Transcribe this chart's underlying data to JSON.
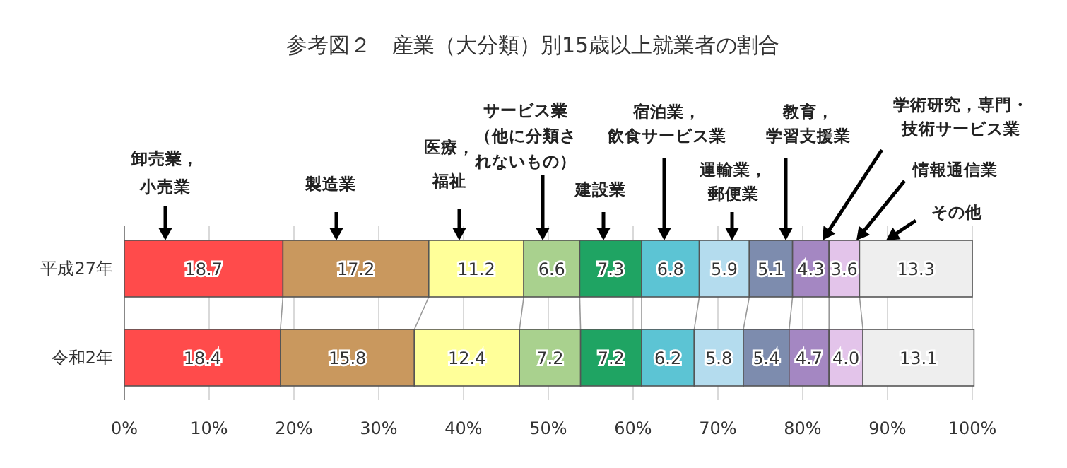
{
  "chart_data": {
    "type": "bar",
    "orientation": "horizontal",
    "stacked": true,
    "title": "参考図２　産業（大分類）別15歳以上就業者の割合",
    "categories": [
      "平成27年",
      "令和2年"
    ],
    "series": [
      {
        "name": "卸売業，小売業",
        "color": "#ff4b4b",
        "values": [
          18.7,
          18.4
        ],
        "value_labels": [
          "18.7",
          "18.4"
        ]
      },
      {
        "name": "製造業",
        "color": "#c9985e",
        "values": [
          17.2,
          15.8
        ],
        "value_labels": [
          "17.2",
          "15.8"
        ]
      },
      {
        "name": "医療，福祉",
        "color": "#ffff99",
        "values": [
          11.2,
          12.4
        ],
        "value_labels": [
          "11.2",
          "12.4"
        ]
      },
      {
        "name": "サービス業（他に分類されないもの）",
        "color": "#a9d18e",
        "values": [
          6.6,
          7.2
        ],
        "value_labels": [
          "6.6",
          "7.2"
        ]
      },
      {
        "name": "建設業",
        "color": "#1fa463",
        "values": [
          7.3,
          7.2
        ],
        "value_labels": [
          "7.3",
          "7.2"
        ]
      },
      {
        "name": "宿泊業，飲食サービス業",
        "color": "#5cc4d4",
        "values": [
          6.8,
          6.2
        ],
        "value_labels": [
          "6.8",
          "6.2"
        ]
      },
      {
        "name": "運輸業，郵便業",
        "color": "#b4dcee",
        "values": [
          5.9,
          5.8
        ],
        "value_labels": [
          "5.9",
          "5.8"
        ]
      },
      {
        "name": "教育，学習支援業",
        "color": "#7d8cae",
        "values": [
          5.1,
          5.4
        ],
        "value_labels": [
          "5.1",
          "5.4"
        ]
      },
      {
        "name": "学術研究，専門・技術サービス業",
        "color": "#a487c2",
        "values": [
          4.3,
          4.7
        ],
        "value_labels": [
          "4.3",
          "4.7"
        ]
      },
      {
        "name": "情報通信業",
        "color": "#e3c4ea",
        "values": [
          3.6,
          4.0
        ],
        "value_labels": [
          "3.6",
          "4.0"
        ]
      },
      {
        "name": "その他",
        "color": "#eeeeee",
        "values": [
          13.3,
          13.1
        ],
        "value_labels": [
          "13.3",
          "13.1"
        ]
      }
    ],
    "xlim": [
      0,
      100.2
    ],
    "xticks": [
      {
        "value": 0,
        "label": "0%"
      },
      {
        "value": 10,
        "label": "10%"
      },
      {
        "value": 20,
        "label": "20%"
      },
      {
        "value": 30,
        "label": "30%"
      },
      {
        "value": 40,
        "label": "40%"
      },
      {
        "value": 50,
        "label": "50%"
      },
      {
        "value": 60,
        "label": "60%"
      },
      {
        "value": 70,
        "label": "70%"
      },
      {
        "value": 80,
        "label": "80%"
      },
      {
        "value": 90,
        "label": "90%"
      },
      {
        "value": 100,
        "label": "100%"
      }
    ],
    "grid": "x"
  }
}
